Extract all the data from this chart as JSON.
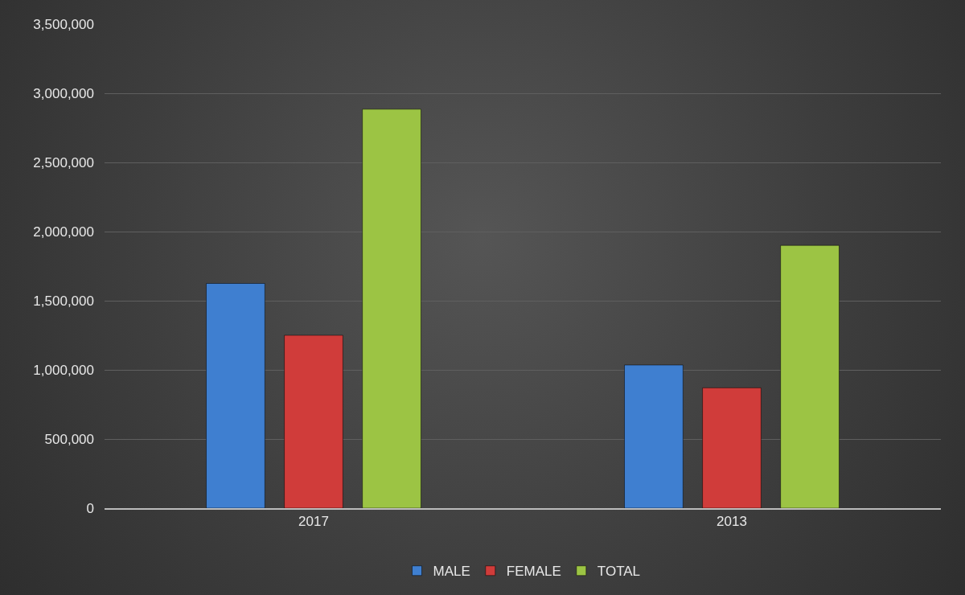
{
  "chart_data": {
    "type": "bar",
    "categories": [
      "2017",
      "2013"
    ],
    "series": [
      {
        "name": "MALE",
        "color": "#3f7fd0",
        "values": [
          1625000,
          1035000
        ]
      },
      {
        "name": "FEMALE",
        "color": "#d03c3a",
        "values": [
          1250000,
          870000
        ]
      },
      {
        "name": "TOTAL",
        "color": "#9cc444",
        "values": [
          2885000,
          1900000
        ]
      }
    ],
    "ylim": [
      0,
      3500000
    ],
    "yticks": [
      {
        "value": 0,
        "label": "0"
      },
      {
        "value": 500000,
        "label": "500,000"
      },
      {
        "value": 1000000,
        "label": "1,000,000"
      },
      {
        "value": 1500000,
        "label": "1,500,000"
      },
      {
        "value": 2000000,
        "label": "2,000,000"
      },
      {
        "value": 2500000,
        "label": "2,500,000"
      },
      {
        "value": 3000000,
        "label": "3,000,000"
      },
      {
        "value": 3500000,
        "label": "3,500,000"
      }
    ],
    "grid": "y",
    "legend": "bottom"
  }
}
